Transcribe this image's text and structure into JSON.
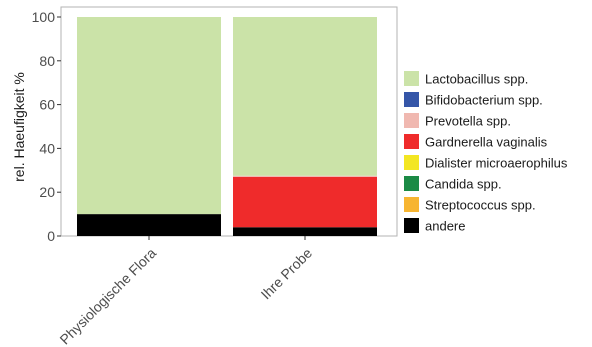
{
  "chart_data": {
    "type": "bar",
    "stacked": true,
    "categories": [
      "Physiologische Flora",
      "Ihre Probe"
    ],
    "ylabel": "rel. Haeufigkeit %",
    "xlabel": "",
    "ylim": [
      0,
      100
    ],
    "yticks": [
      0,
      20,
      40,
      60,
      80,
      100
    ],
    "grid": false,
    "legend_position": "right",
    "stack_order_bottom_to_top": [
      "andere",
      "Streptococcus spp.",
      "Candida spp.",
      "Dialister microaerophilus",
      "Gardnerella vaginalis",
      "Prevotella spp.",
      "Bifidobacterium spp.",
      "Lactobacillus spp."
    ],
    "series": [
      {
        "name": "Lactobacillus spp.",
        "color": "#cbe3a8",
        "values": [
          90,
          72.5
        ]
      },
      {
        "name": "Bifidobacterium spp.",
        "color": "#3556a8",
        "values": [
          0,
          0
        ]
      },
      {
        "name": "Prevotella spp.",
        "color": "#f0b8b0",
        "values": [
          0,
          0.5
        ]
      },
      {
        "name": "Gardnerella vaginalis",
        "color": "#ef2b2b",
        "values": [
          0,
          23
        ]
      },
      {
        "name": "Dialister microaerophilus",
        "color": "#f3e622",
        "values": [
          0,
          0
        ]
      },
      {
        "name": "Candida spp.",
        "color": "#1b8a45",
        "values": [
          0,
          0
        ]
      },
      {
        "name": "Streptococcus spp.",
        "color": "#f7b531",
        "values": [
          0,
          0
        ]
      },
      {
        "name": "andere",
        "color": "#000000",
        "values": [
          10,
          4
        ]
      }
    ]
  }
}
